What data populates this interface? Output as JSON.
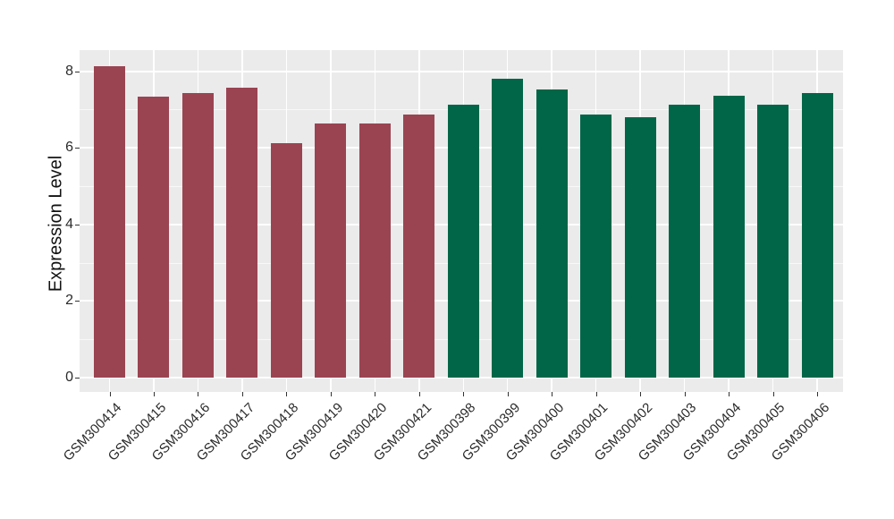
{
  "figure": {
    "background": "#ffffff",
    "panel_background": "#ebebeb",
    "gridline_color": "#ffffff",
    "axis_text_color": "#2b2b2b",
    "tick_mark_color": "#333333"
  },
  "chart_data": {
    "type": "bar",
    "title": "",
    "xlabel": "",
    "ylabel": "Expression Level",
    "ylim": [
      0,
      8.55
    ],
    "yticks": [
      0,
      2,
      4,
      6,
      8
    ],
    "minor_yticks": [
      1,
      3,
      5,
      7
    ],
    "grid": "white major+minor horizontal lines and major vertical lines on gray panel (ggplot theme)",
    "legend_position": "none",
    "x_label_rotation_deg": 45,
    "bar_width_fraction": 0.7,
    "categories": [
      "GSM300414",
      "GSM300415",
      "GSM300416",
      "GSM300417",
      "GSM300418",
      "GSM300419",
      "GSM300420",
      "GSM300421",
      "GSM300398",
      "GSM300399",
      "GSM300400",
      "GSM300401",
      "GSM300402",
      "GSM300403",
      "GSM300404",
      "GSM300405",
      "GSM300406"
    ],
    "values": [
      8.13,
      7.34,
      7.43,
      7.57,
      6.12,
      6.64,
      6.63,
      6.87,
      7.12,
      7.8,
      7.52,
      6.88,
      6.79,
      7.12,
      7.37,
      7.12,
      7.44
    ],
    "bar_colors": [
      "#9a4452",
      "#9a4452",
      "#9a4452",
      "#9a4452",
      "#9a4452",
      "#9a4452",
      "#9a4452",
      "#9a4452",
      "#006647",
      "#006647",
      "#006647",
      "#006647",
      "#006647",
      "#006647",
      "#006647",
      "#006647",
      "#006647"
    ],
    "color_groups": [
      {
        "color": "#9a4452",
        "first_category": "GSM300414",
        "last_category": "GSM300421",
        "count": 8
      },
      {
        "color": "#006647",
        "first_category": "GSM300398",
        "last_category": "GSM300406",
        "count": 9
      }
    ]
  }
}
